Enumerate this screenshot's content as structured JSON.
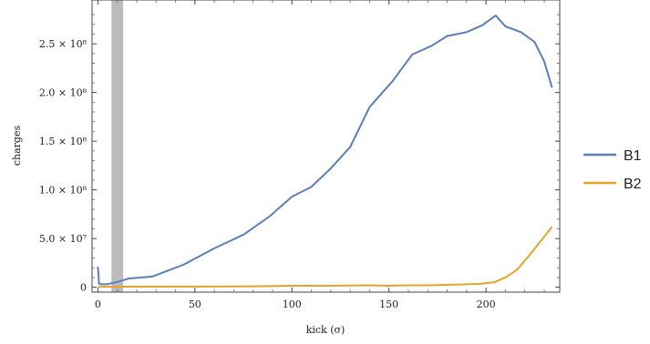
{
  "chart_data": {
    "type": "line",
    "xlabel": "kick (σ)",
    "ylabel": "charges",
    "xlim": [
      -3,
      238
    ],
    "ylim": [
      -5000000,
      295000000
    ],
    "x_ticks": [
      {
        "value": 0,
        "label": "0"
      },
      {
        "value": 50,
        "label": "50"
      },
      {
        "value": 100,
        "label": "100"
      },
      {
        "value": 150,
        "label": "150"
      },
      {
        "value": 200,
        "label": "200"
      }
    ],
    "y_ticks": [
      {
        "value": 0,
        "label": "0"
      },
      {
        "value": 50000000,
        "label": "5.0 × 10⁷"
      },
      {
        "value": 100000000,
        "label": "1.0 × 10⁸"
      },
      {
        "value": 150000000,
        "label": "1.5 × 10⁸"
      },
      {
        "value": 200000000,
        "label": "2.0 × 10⁸"
      },
      {
        "value": 250000000,
        "label": "2.5 × 10⁸"
      }
    ],
    "shaded_region": {
      "x": [
        7,
        13
      ],
      "color": "#bbbbbb"
    },
    "legend_position": "right",
    "grid": false,
    "series": [
      {
        "name": "B1",
        "color": "#5b7eb8",
        "x": [
          0,
          0.6,
          2,
          5,
          10,
          16,
          28,
          44,
          60,
          75,
          88,
          100,
          110,
          120,
          130,
          140,
          152,
          162,
          172,
          180,
          190,
          198,
          205,
          210,
          218,
          225,
          230,
          234
        ],
        "y": [
          21000000,
          3500000,
          3000000,
          3200000,
          5500000,
          9000000,
          11000000,
          23000000,
          40000000,
          54000000,
          72000000,
          93000000,
          103000000,
          122000000,
          144000000,
          185000000,
          212000000,
          239000000,
          248000000,
          258000000,
          262000000,
          269000000,
          279000000,
          268000000,
          262000000,
          252000000,
          232000000,
          205000000
        ]
      },
      {
        "name": "B2",
        "color": "#e3a32e",
        "x": [
          0,
          20,
          50,
          80,
          100,
          120,
          140,
          150,
          160,
          170,
          180,
          190,
          197,
          204,
          210,
          216,
          222,
          228,
          234
        ],
        "y": [
          500000,
          600000,
          700000,
          1000000,
          1500000,
          1500000,
          2000000,
          1500000,
          2000000,
          2000000,
          2500000,
          3000000,
          3500000,
          5000000,
          10000000,
          18000000,
          32000000,
          47000000,
          62000000
        ]
      }
    ]
  }
}
